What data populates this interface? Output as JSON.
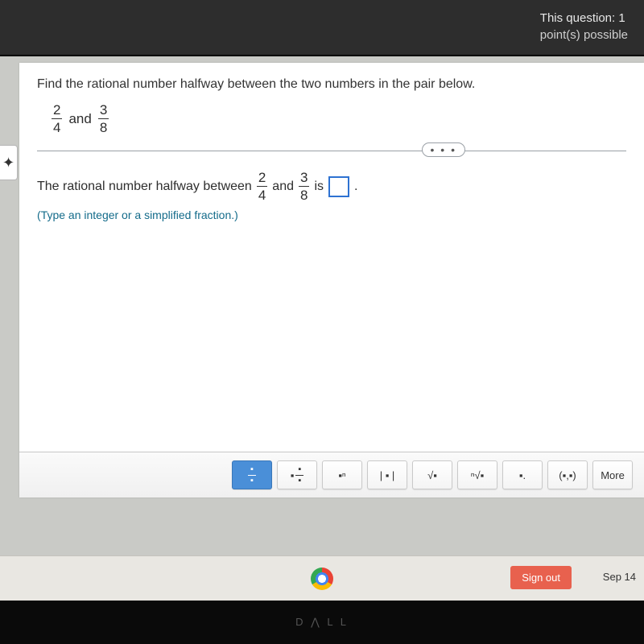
{
  "header": {
    "question_label": "This question:",
    "question_value": "1",
    "points_label": "point(s) possible"
  },
  "question": {
    "prompt": "Find the rational number halfway between the two numbers in the pair below.",
    "frac1": {
      "num": "2",
      "den": "4"
    },
    "conj": "and",
    "frac2": {
      "num": "3",
      "den": "8"
    }
  },
  "answer": {
    "lead": "The rational number halfway between",
    "mid": "and",
    "tail": "is",
    "period": ".",
    "hint": "(Type an integer or a simplified fraction.)"
  },
  "toolbar": {
    "buttons": [
      {
        "name": "fraction-btn",
        "kind": "frac",
        "selected": true
      },
      {
        "name": "mixed-number-btn",
        "kind": "mixed"
      },
      {
        "name": "exponent-btn",
        "kind": "text",
        "label": "▪ⁿ"
      },
      {
        "name": "absolute-value-btn",
        "kind": "text",
        "label": "| ▪ |"
      },
      {
        "name": "sqrt-btn",
        "kind": "text",
        "label": "√▪"
      },
      {
        "name": "nth-root-btn",
        "kind": "text",
        "label": "ⁿ√▪"
      },
      {
        "name": "subscript-btn",
        "kind": "text",
        "label": "▪."
      },
      {
        "name": "ordered-pair-btn",
        "kind": "text",
        "label": "(▪,▪)"
      },
      {
        "name": "more-btn",
        "kind": "text",
        "label": "More"
      }
    ]
  },
  "taskbar": {
    "signout": "Sign out",
    "date": "Sep 14"
  },
  "brand": "D ⋀ L L",
  "tab_icon": "✦",
  "ellipsis": "• • •"
}
